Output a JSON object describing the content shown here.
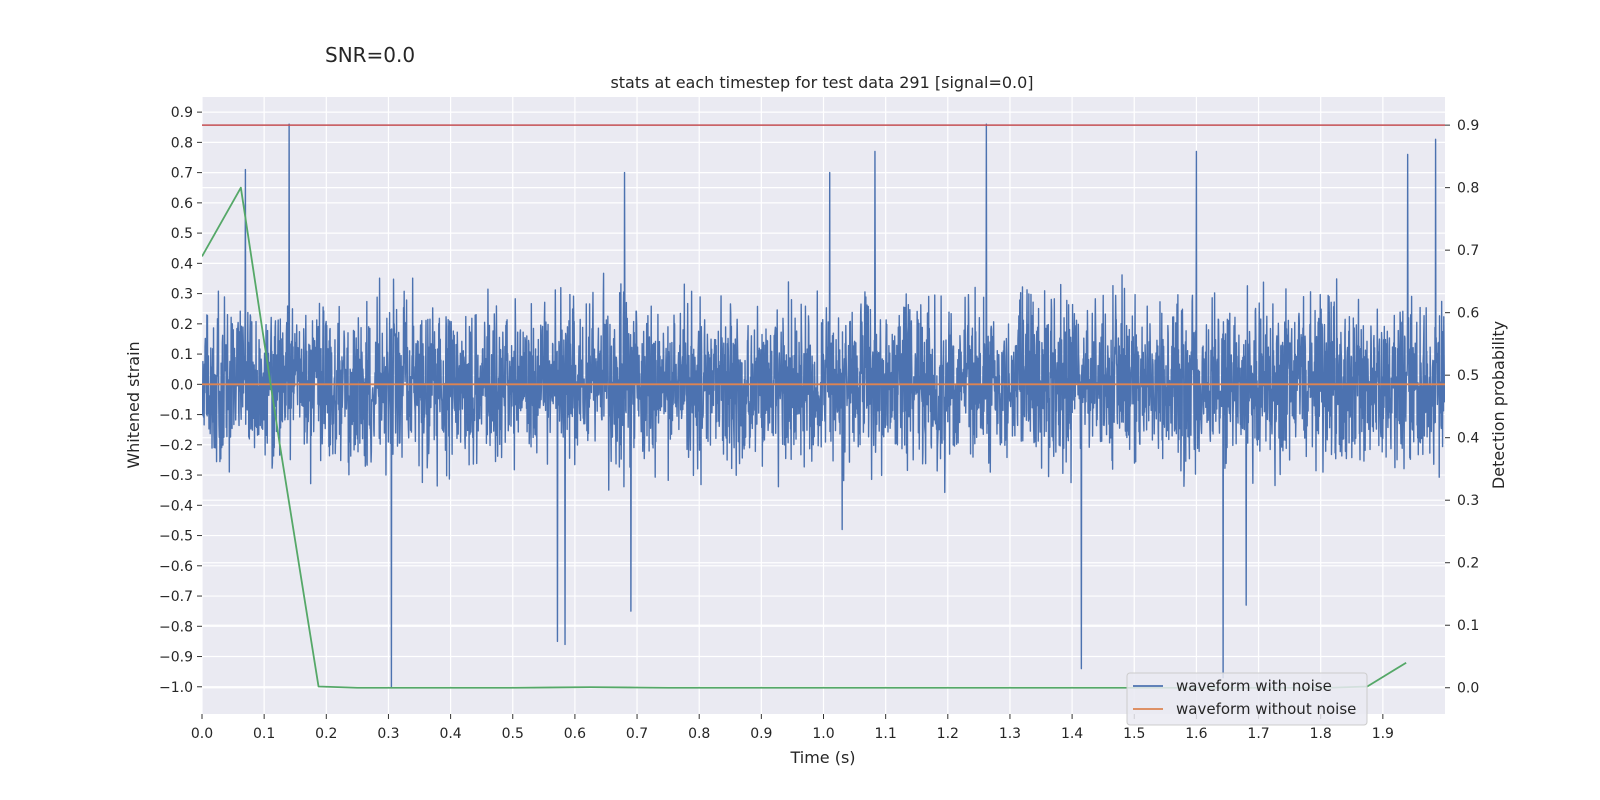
{
  "suptitle": "SNR=0.0",
  "chart_data": {
    "type": "line",
    "title": "stats at each timestep for test data 291 [signal=0.0]",
    "xlabel": "Time (s)",
    "ylabel": "Whitened strain",
    "y2label": "Detection probability",
    "xlim": [
      0.0,
      2.0
    ],
    "ylim": [
      -1.09,
      0.95
    ],
    "y2lim": [
      -0.042,
      0.945
    ],
    "xticks": [
      "0.0",
      "0.1",
      "0.2",
      "0.3",
      "0.4",
      "0.5",
      "0.6",
      "0.7",
      "0.8",
      "0.9",
      "1.0",
      "1.1",
      "1.2",
      "1.3",
      "1.4",
      "1.5",
      "1.6",
      "1.7",
      "1.8",
      "1.9"
    ],
    "yticks": [
      "0.9",
      "0.8",
      "0.7",
      "0.6",
      "0.5",
      "0.4",
      "0.3",
      "0.2",
      "0.1",
      "0.0",
      "-0.1",
      "-0.2",
      "-0.3",
      "-0.4",
      "-0.5",
      "-0.6",
      "-0.7",
      "-0.8",
      "-0.9",
      "-1.0"
    ],
    "y2ticks": [
      "0.9",
      "0.8",
      "0.7",
      "0.6",
      "0.5",
      "0.4",
      "0.3",
      "0.2",
      "0.1",
      "0.0"
    ],
    "grid": true,
    "legend_position": "lower-right",
    "series": [
      {
        "name": "waveform with noise",
        "axis": "left",
        "color": "#4c72b0",
        "sample_rate": 2048,
        "duration": 2.0,
        "amplitude_range": [
          -1.0,
          0.86
        ],
        "peaks": [
          {
            "x": 0.14,
            "y": 0.86
          },
          {
            "x": 1.262,
            "y": 0.86
          },
          {
            "x": 1.985,
            "y": 0.81
          },
          {
            "x": 1.083,
            "y": 0.77
          },
          {
            "x": 1.6,
            "y": 0.77
          },
          {
            "x": 1.94,
            "y": 0.76
          },
          {
            "x": 0.07,
            "y": 0.71
          },
          {
            "x": 0.68,
            "y": 0.7
          },
          {
            "x": 1.01,
            "y": 0.7
          },
          {
            "x": 0.305,
            "y": -1.0
          },
          {
            "x": 1.643,
            "y": -0.97
          },
          {
            "x": 1.415,
            "y": -0.94
          },
          {
            "x": 0.572,
            "y": -0.85
          },
          {
            "x": 0.584,
            "y": -0.86
          },
          {
            "x": 0.69,
            "y": -0.75
          },
          {
            "x": 1.68,
            "y": -0.73
          },
          {
            "x": 1.03,
            "y": -0.48
          }
        ]
      },
      {
        "name": "waveform without noise",
        "axis": "left",
        "color": "#dd8452",
        "x": [
          0.0,
          2.0
        ],
        "y": [
          0.0,
          0.0
        ]
      },
      {
        "name": "",
        "axis": "right",
        "color": "#55a868",
        "x": [
          0.0,
          0.0625,
          0.125,
          0.1875,
          0.25,
          0.3125,
          0.375,
          0.4375,
          0.5,
          0.5625,
          0.625,
          0.6875,
          0.75,
          0.8125,
          0.875,
          0.9375,
          1.0,
          1.0625,
          1.125,
          1.1875,
          1.25,
          1.3125,
          1.375,
          1.4375,
          1.5,
          1.5625,
          1.625,
          1.6875,
          1.75,
          1.8125,
          1.875,
          1.9375
        ],
        "y": [
          0.69,
          0.8,
          0.39,
          0.002,
          0.0,
          0.0,
          0.0,
          0.0,
          0.0,
          0.0005,
          0.001,
          0.0005,
          0.0,
          0.0,
          0.0,
          0.0,
          0.0,
          0.0,
          0.0,
          0.0,
          0.0,
          0.0,
          0.0,
          0.0,
          0.0,
          0.0,
          0.0,
          0.0,
          0.0,
          0.0,
          0.002,
          0.04
        ]
      },
      {
        "name": "",
        "axis": "right",
        "color": "#c44e52",
        "x": [
          0.0,
          2.0
        ],
        "y": [
          0.9,
          0.9
        ]
      }
    ]
  }
}
